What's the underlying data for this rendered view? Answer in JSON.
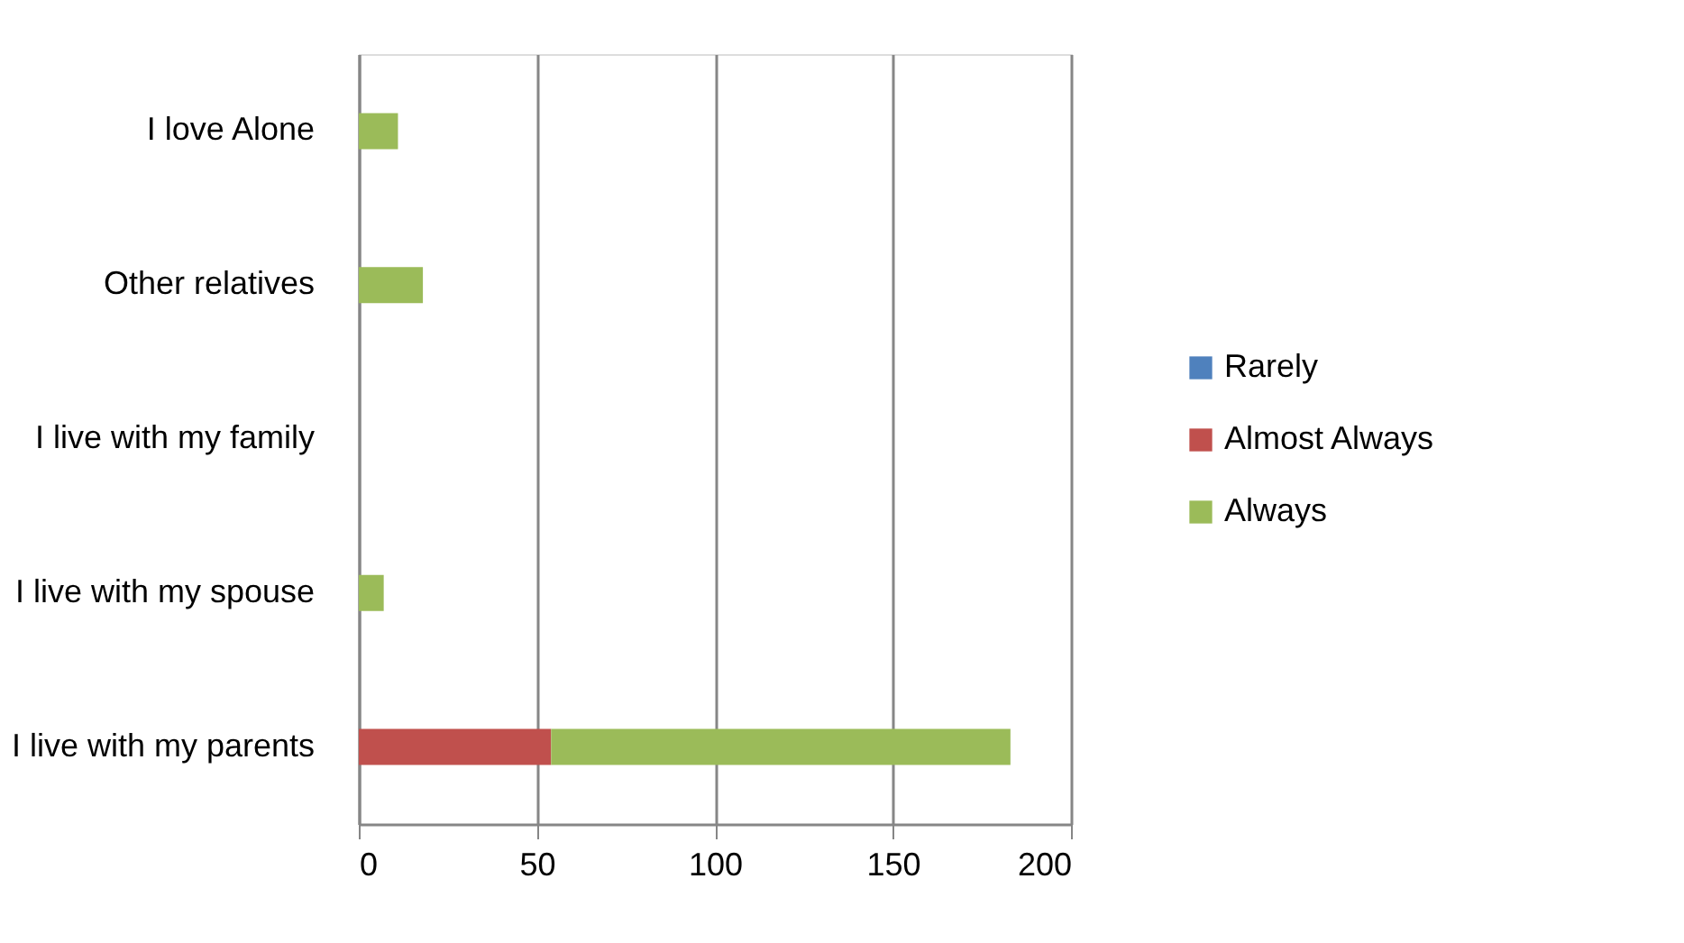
{
  "chart_data": {
    "type": "bar",
    "orientation": "horizontal",
    "stacked": true,
    "categories": [
      "I love Alone",
      "Other relatives",
      "I live with my family",
      "I live with my spouse",
      "I live with my parents"
    ],
    "series": [
      {
        "name": "Rarely",
        "color": "#4f81bd",
        "values": [
          0,
          0,
          0,
          0,
          0
        ]
      },
      {
        "name": "Almost Always",
        "color": "#c0504d",
        "values": [
          0,
          0,
          0,
          0,
          54
        ]
      },
      {
        "name": "Always",
        "color": "#9bbb59",
        "values": [
          11,
          18,
          0,
          7,
          129
        ]
      }
    ],
    "xlim": [
      0,
      200
    ],
    "xticks": [
      0,
      50,
      100,
      150,
      200
    ],
    "grid": "x",
    "legend": "right"
  }
}
